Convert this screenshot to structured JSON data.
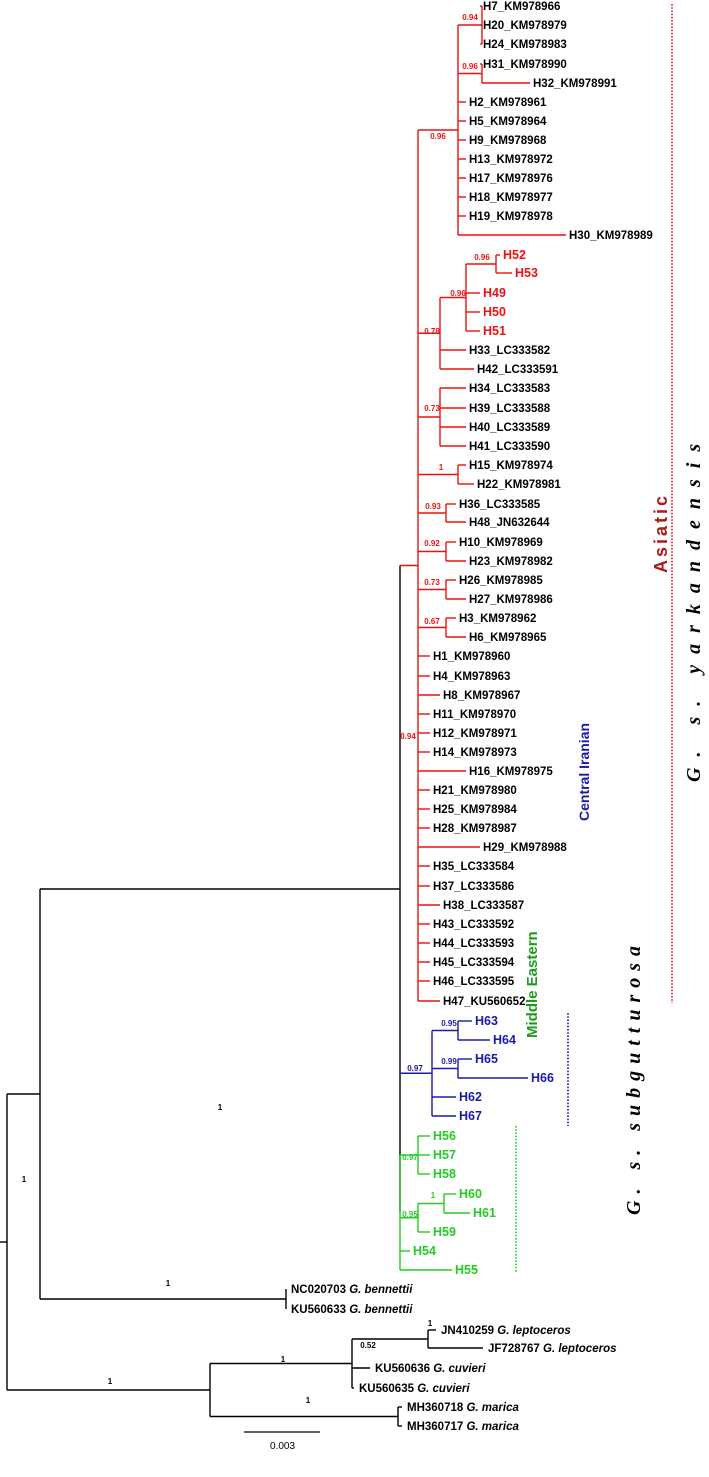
{
  "colors": {
    "asiatic": "#ee1111",
    "central_iranian": "#1a1aa8",
    "middle_eastern": "#22cc22",
    "outgroup": "#000000",
    "asiatic_title": "#b01818",
    "middle_eastern_title": "#1f9a1f"
  },
  "asiatic_tips": [
    "H7_KM978966",
    "H20_KM978979",
    "H24_KM978983",
    "H31_KM978990",
    "H32_KM978991",
    "H2_KM978961",
    "H5_KM978964",
    "H9_KM978968",
    "H13_KM978972",
    "H17_KM978976",
    "H18_KM978977",
    "H19_KM978978",
    "H30_KM978989",
    "H52",
    "H53",
    "H49",
    "H50",
    "H51",
    "H33_LC333582",
    "H42_LC333591",
    "H34_LC333583",
    "H39_LC333588",
    "H40_LC333589",
    "H41_LC333590",
    "H15_KM978974",
    "H22_KM978981",
    "H36_LC333585",
    "H48_JN632644",
    "H10_KM978969",
    "H23_KM978982",
    "H26_KM978985",
    "H27_KM978986",
    "H3_KM978962",
    "H6_KM978965",
    "H1_KM978960",
    "H4_KM978963",
    "H8_KM978967",
    "H11_KM978970",
    "H12_KM978971",
    "H14_KM978973",
    "H16_KM978975",
    "H21_KM978980",
    "H25_KM978984",
    "H28_KM978987",
    "H29_KM978988",
    "H35_LC333584",
    "H37_LC333586",
    "H38_LC333587",
    "H43_LC333592",
    "H44_LC333593",
    "H45_LC333594",
    "H46_LC333595",
    "H47_KU560652"
  ],
  "central_iranian_tips": [
    "H63",
    "H64",
    "H65",
    "H66",
    "H62",
    "H67"
  ],
  "middle_eastern_tips": [
    "H56",
    "H57",
    "H58",
    "H60",
    "H61",
    "H59",
    "H54",
    "H55"
  ],
  "outgroup_tips": [
    {
      "acc": "NC020703",
      "species": "G. bennettii"
    },
    {
      "acc": "KU560633",
      "species": "G. bennettii"
    },
    {
      "acc": "JN410259",
      "species": "G. leptoceros"
    },
    {
      "acc": "JF728767",
      "species": "G. leptoceros"
    },
    {
      "acc": "KU560636",
      "species": "G. cuvieri"
    },
    {
      "acc": "KU560635",
      "species": "G. cuvieri"
    },
    {
      "acc": "MH360718",
      "species": "G. marica"
    },
    {
      "acc": "MH360717",
      "species": "G. marica"
    }
  ],
  "support": {
    "h7_h20_h24": "0.94",
    "h31_h32": "0.96",
    "upper_asiatic": "0.96",
    "h52_h53": "0.96",
    "h49_h53": "0.96",
    "h33_group": "0.78",
    "h34_group": "0.73",
    "h15_h22": "1",
    "h36_h48": "0.93",
    "h10_h23": "0.92",
    "h26_h27": "0.73",
    "h3_h6": "0.67",
    "asiatic": "0.94",
    "h63_h64": "0.95",
    "h65_h66": "0.99",
    "central_iranian": "0.97",
    "middle_eastern_h56": "0.97",
    "h60_h61": "1",
    "middle_eastern_h60": "0.95",
    "subgutturosa": "1",
    "gazelle_main": "1",
    "bennettii": "1",
    "leptoceros": "1",
    "leptoceros_cuvieri": "0.52",
    "cuvieri_marica": "1",
    "marica": "1",
    "outgroup_clade": "1"
  },
  "clade_labels": {
    "asiatic": "Asiatic",
    "yarkandensis": "G. s. yarkandensis",
    "central_iranian": "Central Iranian",
    "middle_eastern": "Middle Eastern",
    "subgutturosa": "G. s. subgutturosa"
  },
  "scale_bar": {
    "label": "0.003"
  }
}
